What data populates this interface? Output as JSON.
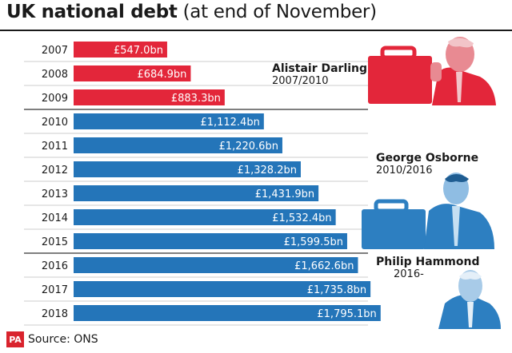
{
  "title": {
    "main": "UK national debt",
    "sub": "(at end of November)"
  },
  "source": "Source: ONS",
  "logo": "PA",
  "colors": {
    "darling": "#e3263a",
    "later": "#2475b9",
    "photo_red": "#e3263a",
    "photo_blue": "#2d7fc1"
  },
  "chancellors": [
    {
      "name": "Alistair Darling",
      "term": "2007/2010"
    },
    {
      "name": "George Osborne",
      "term": "2010/2016"
    },
    {
      "name": "Philip Hammond",
      "term": "2016-"
    }
  ],
  "chart_data": {
    "type": "bar",
    "orientation": "horizontal",
    "title": "UK national debt (at end of November)",
    "categories": [
      "2007",
      "2008",
      "2009",
      "2010",
      "2011",
      "2012",
      "2013",
      "2014",
      "2015",
      "2016",
      "2017",
      "2018"
    ],
    "values": [
      547.0,
      684.9,
      883.3,
      1112.4,
      1220.6,
      1328.2,
      1431.9,
      1532.4,
      1599.5,
      1662.6,
      1735.8,
      1795.1
    ],
    "labels": [
      "£547.0bn",
      "£684.9bn",
      "£883.3bn",
      "£1,112.4bn",
      "£1,220.6bn",
      "£1,328.2bn",
      "£1,431.9bn",
      "£1,532.4bn",
      "£1,599.5bn",
      "£1,662.6bn",
      "£1,735.8bn",
      "£1,795.1bn"
    ],
    "bar_colors": [
      "#e3263a",
      "#e3263a",
      "#e3263a",
      "#2475b9",
      "#2475b9",
      "#2475b9",
      "#2475b9",
      "#2475b9",
      "#2475b9",
      "#2475b9",
      "#2475b9",
      "#2475b9"
    ],
    "unit": "£bn",
    "grid": false,
    "legend": "none"
  }
}
